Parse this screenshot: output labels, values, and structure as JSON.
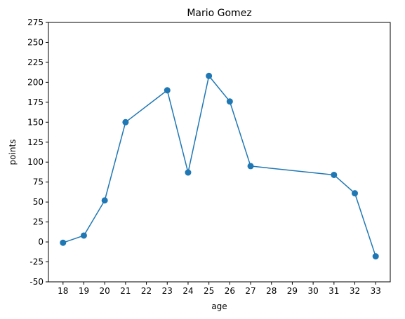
{
  "chart_data": {
    "type": "line",
    "title": "Mario Gomez",
    "xlabel": "age",
    "ylabel": "points",
    "x_ticks": [
      18,
      19,
      20,
      21,
      22,
      23,
      24,
      25,
      26,
      27,
      28,
      29,
      30,
      31,
      32,
      33
    ],
    "y_ticks": [
      -50,
      -25,
      0,
      25,
      50,
      75,
      100,
      125,
      150,
      175,
      200,
      225,
      250,
      275
    ],
    "xlim": [
      17.3,
      33.7
    ],
    "ylim": [
      -50,
      275
    ],
    "grid": false,
    "series": [
      {
        "color": "#1f77b4",
        "marker": "circle",
        "x": [
          18,
          19,
          20,
          21,
          23,
          24,
          25,
          26,
          27,
          31,
          32,
          33
        ],
        "y": [
          -1,
          8,
          52,
          150,
          190,
          87,
          208,
          176,
          95,
          84,
          61,
          -18
        ]
      }
    ]
  }
}
